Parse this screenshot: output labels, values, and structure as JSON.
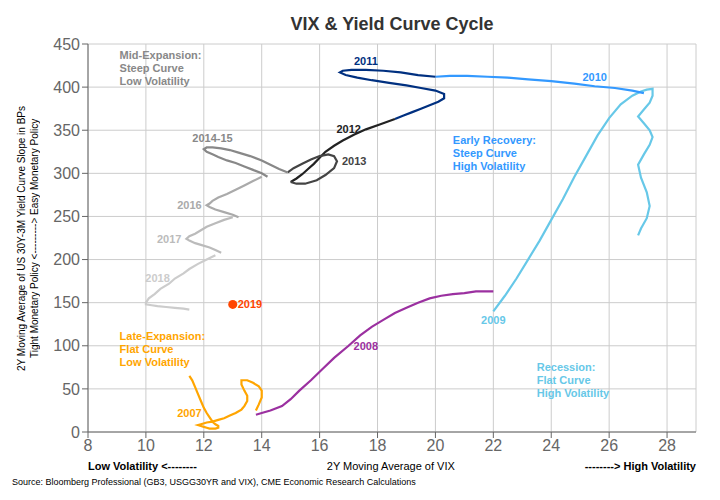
{
  "chart_data": {
    "type": "line",
    "title": "VIX & Yield Curve Cycle",
    "xlabel": [
      "Low Volatility <--------",
      "2Y Moving Average of VIX",
      "--------> High Volatility"
    ],
    "ylabel": [
      "2Y Moving Average of US 30Y-3M Yield Curve Slope in BPs",
      "Tight Monetary Policy <---------> Easy Monetary Policy"
    ],
    "source": "Source: Bloomberg Professional (GB3, USGG30YR and VIX), CME Economic Research Calculations",
    "xlim": [
      8,
      29
    ],
    "ylim": [
      0,
      450
    ],
    "xticks": [
      8,
      10,
      12,
      14,
      16,
      18,
      20,
      22,
      24,
      26,
      28
    ],
    "yticks": [
      0,
      50,
      100,
      150,
      200,
      250,
      300,
      350,
      400,
      450
    ],
    "grid": true,
    "annotations": [
      {
        "text": "Mid-Expansion:\nSteep Curve\nLow Volatility",
        "color": "#888888"
      },
      {
        "text": "Early Recovery:\nSteep Curve\nHigh Volatility",
        "color": "#3399FF"
      },
      {
        "text": "Late-Expansion:\nFlat Curve\nLow Volatility",
        "color": "#FFA500"
      },
      {
        "text": "Recession:\nFlat Curve\nHigh Volatility",
        "color": "#67C8E8"
      }
    ],
    "series": [
      {
        "name": "2007",
        "type": "line",
        "color": "#FFA500",
        "x": [
          11.5,
          11.6,
          11.7,
          11.8,
          11.9,
          12.0,
          12.1,
          12.2,
          12.3,
          12.4,
          12.5,
          12.5,
          12.4,
          12.3,
          12.2,
          12.1,
          12.0,
          11.9,
          11.8,
          11.9,
          12.1,
          12.3,
          12.5,
          12.7,
          12.9,
          13.1,
          13.3,
          13.4,
          13.5,
          13.5,
          13.4,
          13.3,
          13.3,
          13.5,
          13.7,
          13.9,
          14.0,
          14.0,
          13.9,
          13.8
        ],
        "values": [
          65,
          60,
          52,
          44,
          36,
          28,
          22,
          17,
          12,
          9,
          7,
          5,
          4,
          4,
          4,
          5,
          6,
          7,
          8,
          9,
          11,
          12,
          14,
          16,
          19,
          22,
          26,
          30,
          36,
          42,
          48,
          55,
          60,
          60,
          57,
          53,
          48,
          40,
          32,
          25
        ]
      },
      {
        "name": "2008",
        "type": "line",
        "color": "#9B30A0",
        "x": [
          13.8,
          14.0,
          14.3,
          14.7,
          15.0,
          15.3,
          15.7,
          16.1,
          16.5,
          17.0,
          17.4,
          17.8,
          18.2,
          18.6,
          19.0,
          19.4,
          19.8,
          20.2,
          20.6,
          21.0,
          21.4,
          21.7,
          22.0
        ],
        "values": [
          20,
          22,
          25,
          30,
          38,
          48,
          60,
          73,
          86,
          100,
          112,
          122,
          130,
          138,
          144,
          150,
          155,
          158,
          160,
          161,
          163,
          163,
          163
        ]
      },
      {
        "name": "2009",
        "type": "line",
        "color": "#67C8E8",
        "x": [
          22.0,
          22.4,
          22.8,
          23.2,
          23.6,
          24.0,
          24.4,
          24.8,
          25.2,
          25.6,
          26.0,
          26.4,
          26.8,
          27.1,
          27.3,
          27.5,
          27.5,
          27.4,
          27.2,
          27.0,
          27.2,
          27.4,
          27.5,
          27.4,
          27.2,
          27.0,
          27.1,
          27.3,
          27.4,
          27.3,
          27.1,
          27.0
        ],
        "values": [
          140,
          158,
          178,
          200,
          222,
          246,
          270,
          296,
          320,
          344,
          364,
          380,
          390,
          395,
          397,
          398,
          390,
          382,
          374,
          366,
          358,
          350,
          342,
          333,
          322,
          310,
          295,
          278,
          262,
          248,
          236,
          228
        ]
      },
      {
        "name": "2010",
        "type": "line",
        "color": "#3399FF",
        "x": [
          27.2,
          26.8,
          26.2,
          25.5,
          24.8,
          24.0,
          23.2,
          22.5,
          21.8,
          21.1,
          20.5,
          20.0
        ],
        "values": [
          393,
          396,
          399,
          401,
          404,
          407,
          409,
          411,
          412,
          413,
          413,
          412
        ]
      },
      {
        "name": "2011",
        "type": "line",
        "color": "#003080",
        "x": [
          20.0,
          19.4,
          18.8,
          18.2,
          17.6,
          17.1,
          16.8,
          16.7,
          16.9,
          17.3,
          17.8,
          18.4,
          19.0,
          19.5,
          20.0,
          20.3,
          20.3,
          20.1,
          19.8,
          19.5,
          19.2,
          18.9,
          18.6
        ],
        "values": [
          412,
          414,
          417,
          419,
          420,
          420,
          419,
          417,
          414,
          411,
          408,
          405,
          402,
          399,
          396,
          392,
          387,
          383,
          379,
          375,
          371,
          367,
          363
        ]
      },
      {
        "name": "2012",
        "type": "line",
        "color": "#222222",
        "x": [
          18.6,
          18.1,
          17.6,
          17.2,
          16.8,
          16.5,
          16.2,
          16.0,
          15.8,
          15.6,
          15.4,
          15.2,
          15.0
        ],
        "values": [
          363,
          357,
          351,
          345,
          338,
          332,
          325,
          318,
          311,
          305,
          299,
          294,
          290
        ]
      },
      {
        "name": "2013",
        "type": "line",
        "color": "#444444",
        "x": [
          15.0,
          15.2,
          15.5,
          15.9,
          16.2,
          16.5,
          16.6,
          16.5,
          16.3,
          16.0,
          15.7,
          15.4,
          15.1,
          14.9
        ],
        "values": [
          290,
          288,
          288,
          292,
          298,
          306,
          314,
          320,
          322,
          320,
          316,
          311,
          306,
          301
        ]
      },
      {
        "name": "2014-15",
        "type": "line",
        "color": "#888888",
        "x": [
          14.9,
          14.6,
          14.3,
          14.0,
          13.6,
          13.2,
          12.9,
          12.6,
          12.3,
          12.1,
          12.0,
          12.1,
          12.3,
          12.5,
          12.8,
          13.1,
          13.4,
          13.7,
          14.0,
          14.2
        ],
        "values": [
          301,
          305,
          310,
          315,
          320,
          324,
          327,
          329,
          330,
          330,
          328,
          325,
          322,
          319,
          315,
          312,
          308,
          304,
          300,
          296
        ]
      },
      {
        "name": "2016",
        "type": "line",
        "color": "#AAAAAA",
        "x": [
          14.0,
          13.7,
          13.4,
          13.1,
          12.8,
          12.5,
          12.3,
          12.2,
          12.1,
          12.2,
          12.4,
          12.7,
          13.0,
          13.2
        ],
        "values": [
          296,
          291,
          286,
          281,
          276,
          272,
          268,
          265,
          263,
          261,
          258,
          255,
          252,
          249
        ]
      },
      {
        "name": "2017",
        "type": "line",
        "color": "#BBBBBB",
        "x": [
          13.0,
          12.7,
          12.4,
          12.1,
          11.9,
          11.7,
          11.5,
          11.4,
          11.5,
          11.7,
          11.9,
          12.2,
          12.4,
          12.6
        ],
        "values": [
          249,
          246,
          242,
          238,
          234,
          230,
          227,
          224,
          222,
          219,
          217,
          214,
          211,
          208
        ]
      },
      {
        "name": "2018",
        "type": "line",
        "color": "#CCCCCC",
        "x": [
          12.4,
          12.1,
          11.8,
          11.5,
          11.3,
          11.0,
          10.8,
          10.5,
          10.3,
          10.1,
          10.0,
          10.0,
          10.2,
          10.4,
          10.7,
          11.0,
          11.3,
          11.5
        ],
        "values": [
          205,
          200,
          195,
          189,
          184,
          178,
          172,
          166,
          160,
          155,
          150,
          148,
          147,
          146,
          145,
          144,
          143,
          142
        ]
      },
      {
        "name": "2019",
        "type": "scatter",
        "marker": "circle",
        "color": "#FF4500",
        "x": [
          13.0
        ],
        "values": [
          148
        ]
      }
    ]
  }
}
